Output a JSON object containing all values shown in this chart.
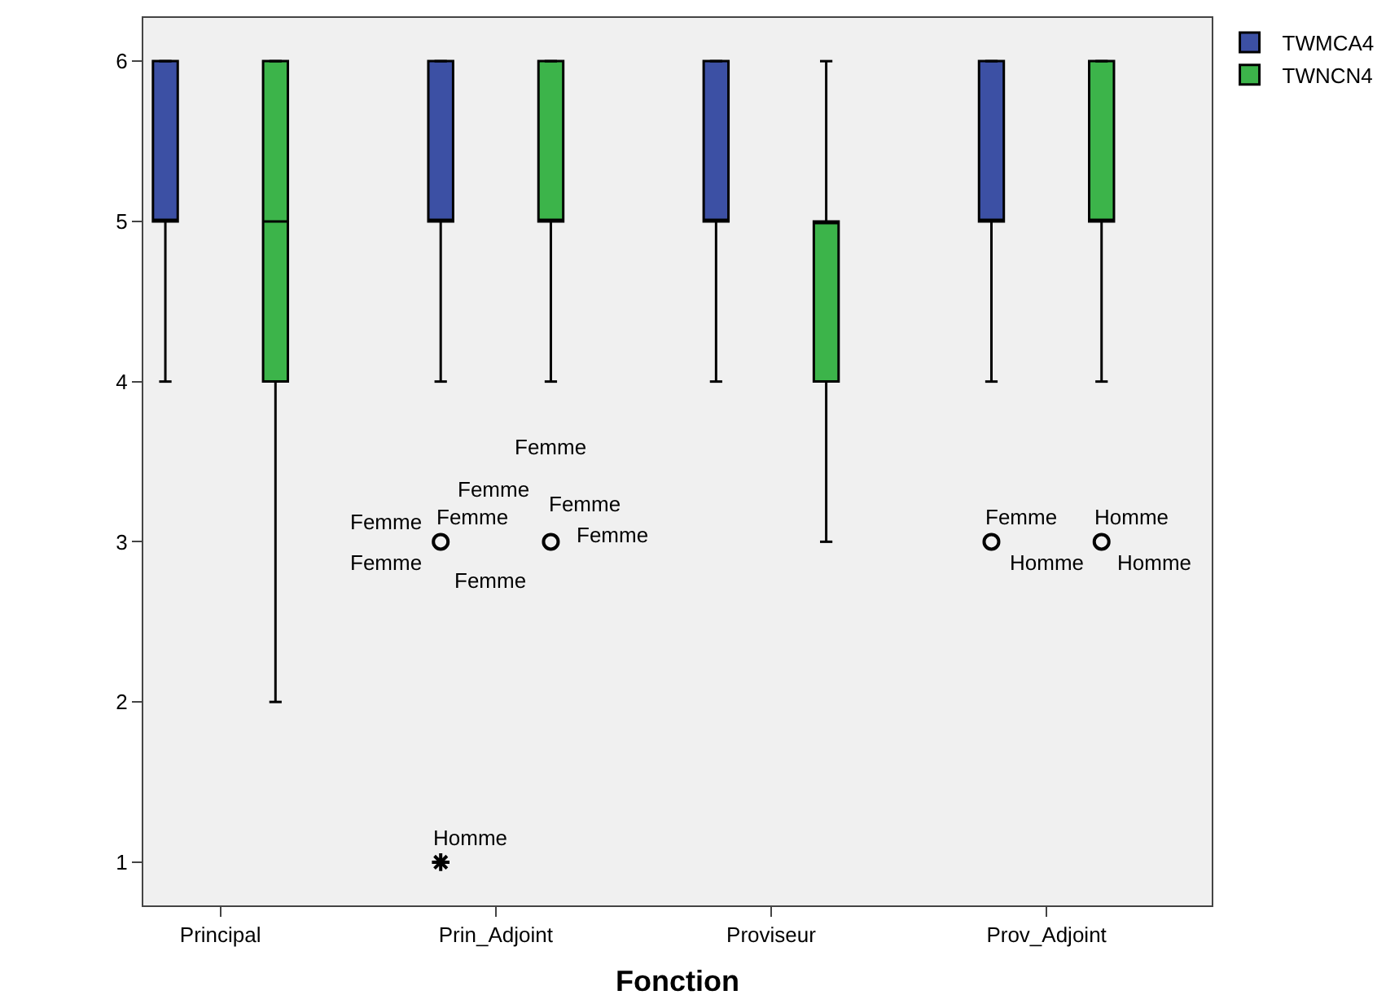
{
  "chart_data": {
    "type": "box",
    "xlabel": "Fonction",
    "categories": [
      "Principal",
      "Prin_Adjoint",
      "Proviseur",
      "Prov_Adjoint"
    ],
    "series": [
      {
        "name": "TWMCA4",
        "color": "#3c50a4",
        "boxes": [
          {
            "low": 4,
            "q1": 5,
            "median": 5,
            "q3": 6,
            "high": 6
          },
          {
            "low": 4,
            "q1": 5,
            "median": 5,
            "q3": 6,
            "high": 6,
            "outliers": [
              3,
              1
            ]
          },
          {
            "low": 4,
            "q1": 5,
            "median": 5,
            "q3": 6,
            "high": 6
          },
          {
            "low": 4,
            "q1": 5,
            "median": 5,
            "q3": 6,
            "high": 6,
            "outliers": [
              3
            ]
          }
        ]
      },
      {
        "name": "TWNCN4",
        "color": "#3cb44a",
        "boxes": [
          {
            "low": 2,
            "q1": 4,
            "median": 5,
            "q3": 6,
            "high": 6
          },
          {
            "low": 4,
            "q1": 5,
            "median": 5,
            "q3": 6,
            "high": 6,
            "outliers": [
              3
            ]
          },
          {
            "low": 3,
            "q1": 4,
            "median": 5,
            "q3": 5,
            "high": 6
          },
          {
            "low": 4,
            "q1": 5,
            "median": 5,
            "q3": 6,
            "high": 6,
            "outliers": [
              3
            ]
          }
        ]
      }
    ],
    "ylim": [
      0.73,
      6.27
    ],
    "yticks": [
      1,
      2,
      3,
      4,
      5,
      6
    ],
    "grid": false,
    "legend": "top right",
    "annotations": [
      "Femme",
      "Femme",
      "Femme",
      "Femme",
      "Femme",
      "Femme",
      "Femme",
      "Femme",
      "Homme",
      "Femme",
      "Homme",
      "Homme",
      "Homme"
    ]
  }
}
